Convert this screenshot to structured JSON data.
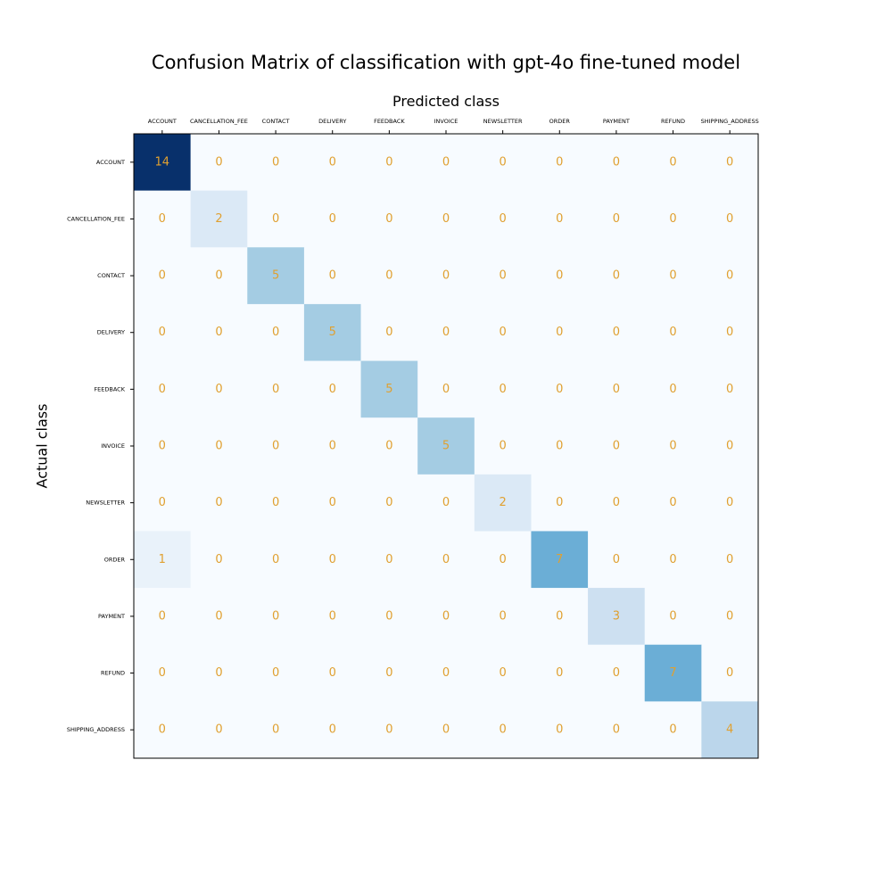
{
  "chart_data": {
    "type": "heatmap",
    "title": "Confusion Matrix of classification with gpt-4o fine-tuned model",
    "xlabel": "Predicted class",
    "ylabel": "Actual class",
    "categories": [
      "ACCOUNT",
      "CANCELLATION_FEE",
      "CONTACT",
      "DELIVERY",
      "FEEDBACK",
      "INVOICE",
      "NEWSLETTER",
      "ORDER",
      "PAYMENT",
      "REFUND",
      "SHIPPING_ADDRESS"
    ],
    "values": [
      [
        14,
        0,
        0,
        0,
        0,
        0,
        0,
        0,
        0,
        0,
        0
      ],
      [
        0,
        2,
        0,
        0,
        0,
        0,
        0,
        0,
        0,
        0,
        0
      ],
      [
        0,
        0,
        5,
        0,
        0,
        0,
        0,
        0,
        0,
        0,
        0
      ],
      [
        0,
        0,
        0,
        5,
        0,
        0,
        0,
        0,
        0,
        0,
        0
      ],
      [
        0,
        0,
        0,
        0,
        5,
        0,
        0,
        0,
        0,
        0,
        0
      ],
      [
        0,
        0,
        0,
        0,
        0,
        5,
        0,
        0,
        0,
        0,
        0
      ],
      [
        0,
        0,
        0,
        0,
        0,
        0,
        2,
        0,
        0,
        0,
        0
      ],
      [
        1,
        0,
        0,
        0,
        0,
        0,
        0,
        7,
        0,
        0,
        0
      ],
      [
        0,
        0,
        0,
        0,
        0,
        0,
        0,
        0,
        3,
        0,
        0
      ],
      [
        0,
        0,
        0,
        0,
        0,
        0,
        0,
        0,
        0,
        7,
        0
      ],
      [
        0,
        0,
        0,
        0,
        0,
        0,
        0,
        0,
        0,
        0,
        4
      ]
    ],
    "colormap": "Blues",
    "annotation_color": "#e0a030",
    "x_tick_position": "top",
    "grid": false,
    "colorbar": false
  }
}
